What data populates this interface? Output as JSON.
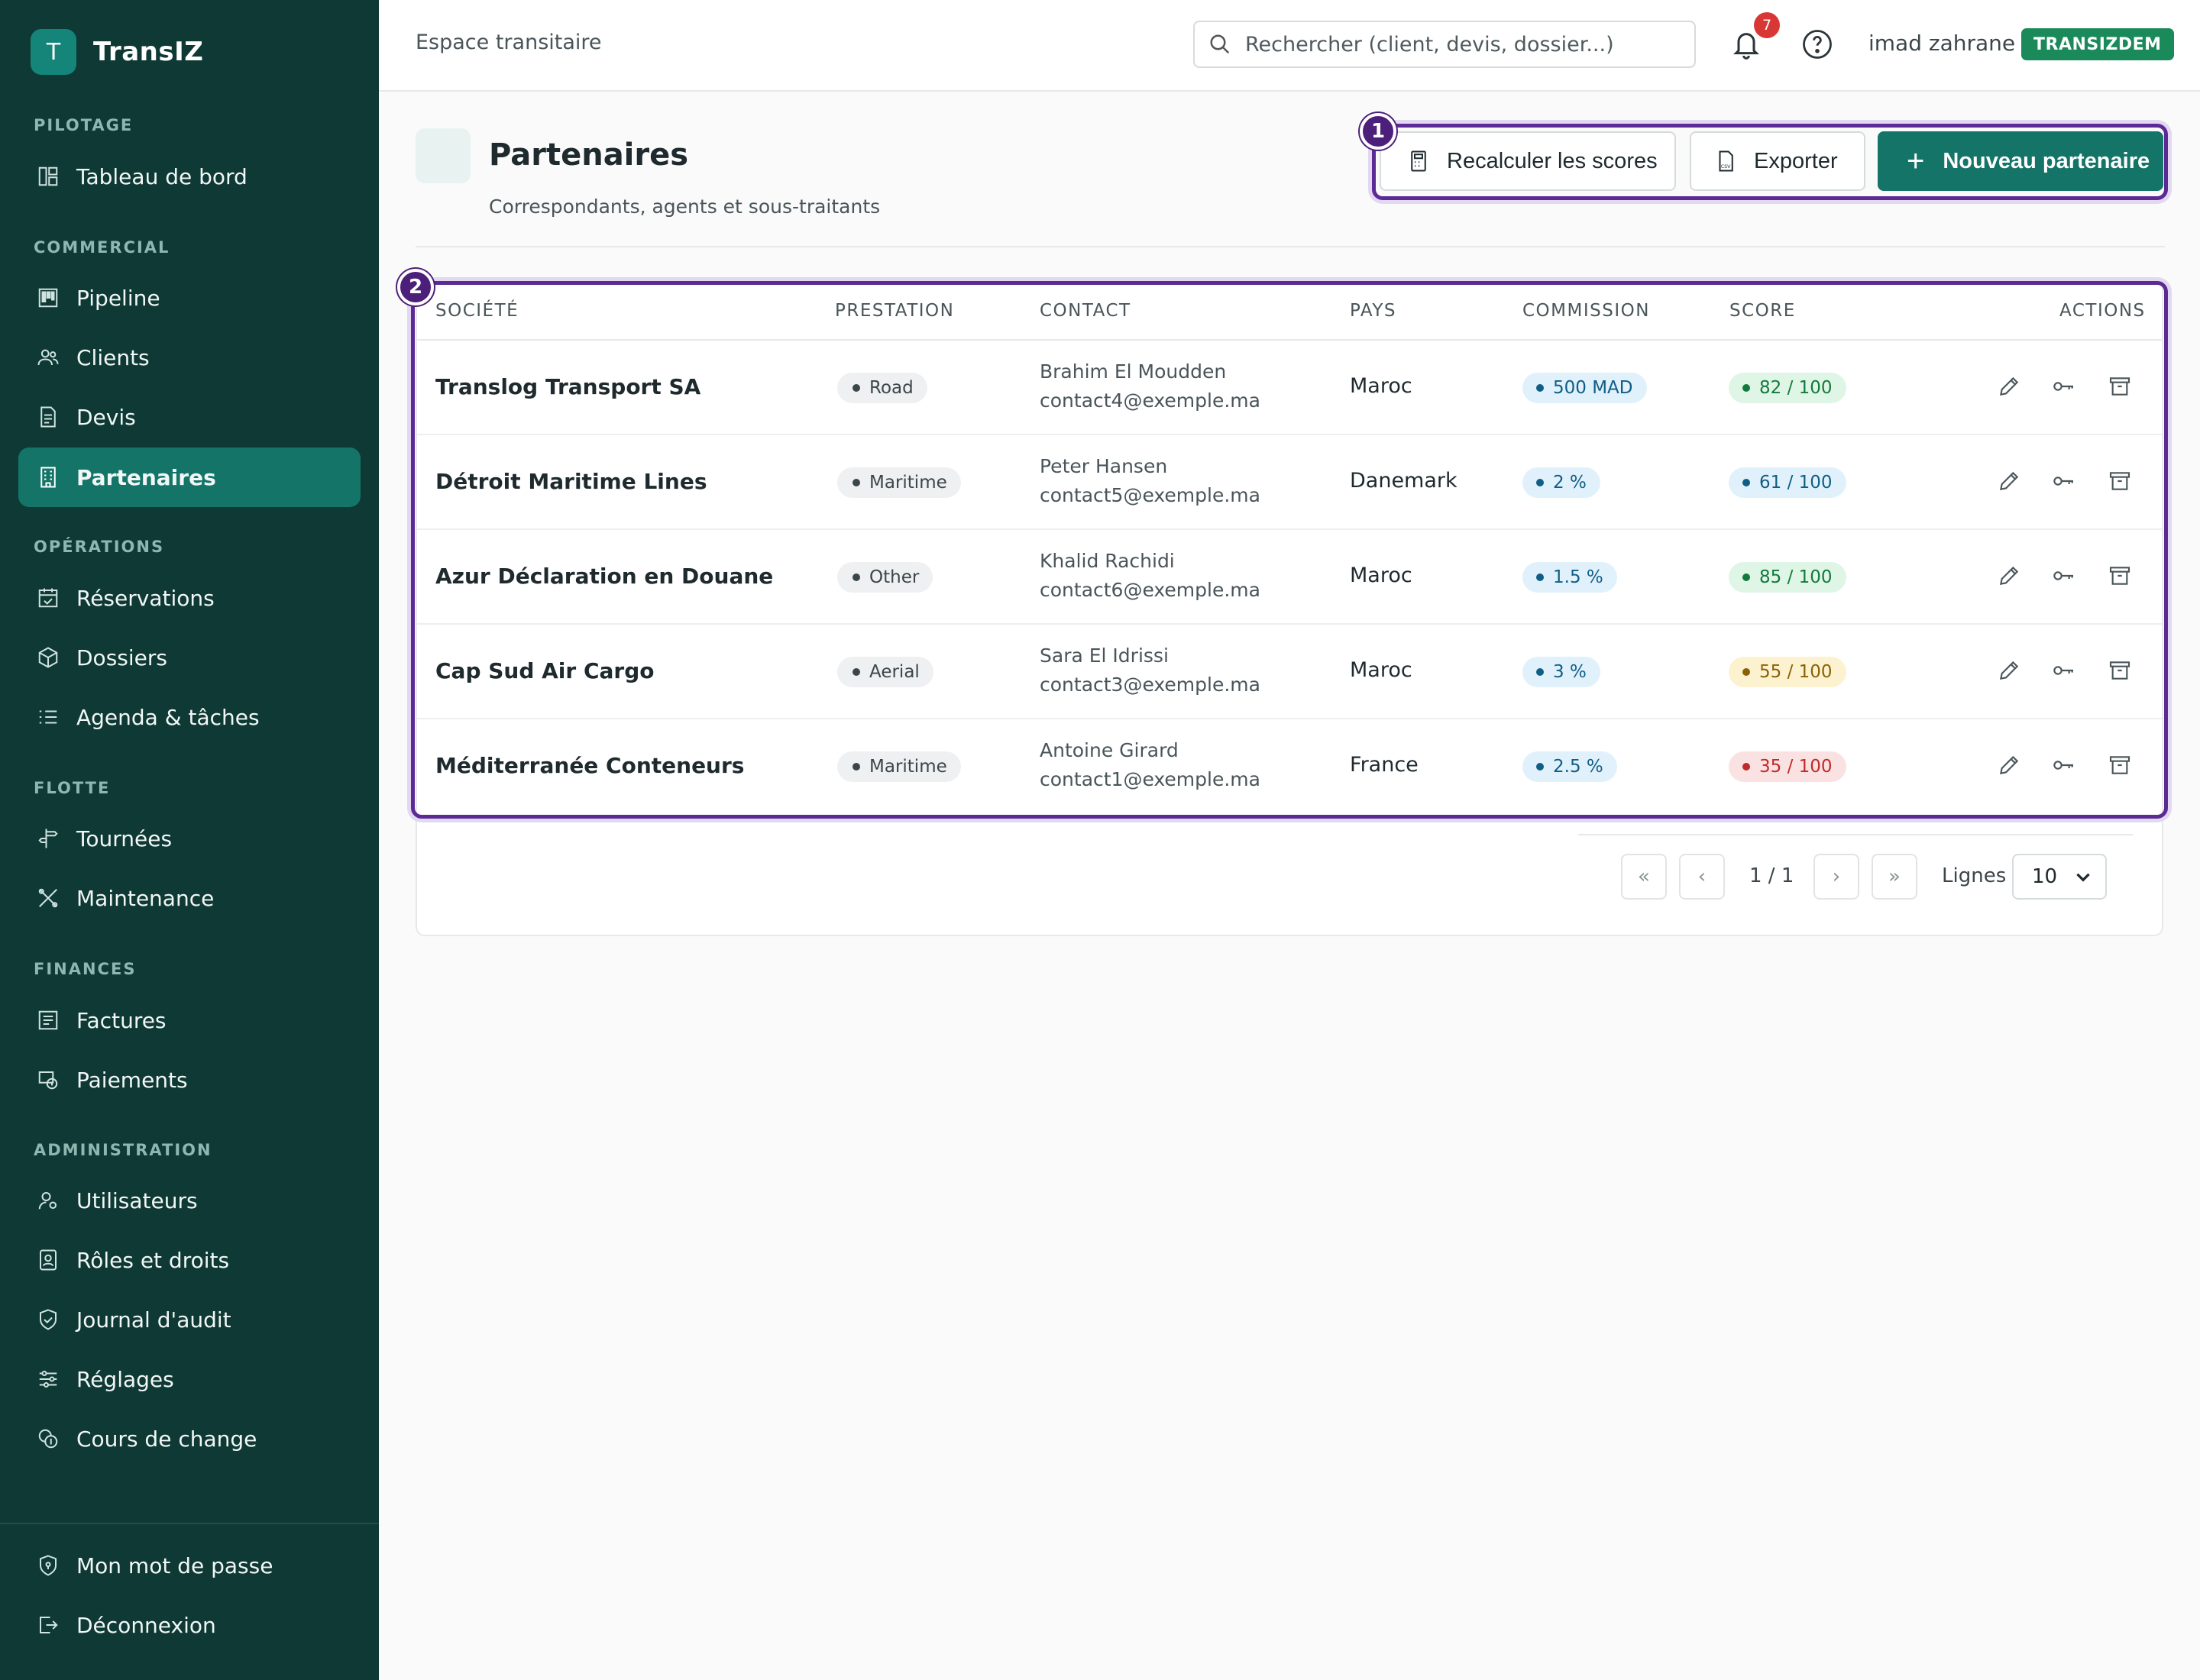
{
  "brand": {
    "logo_letter": "T",
    "name": "TransIZ",
    "color": "#137467"
  },
  "sidebar": {
    "sections": [
      {
        "title": "PILOTAGE",
        "items": [
          {
            "label": "Tableau de bord",
            "icon": "dashboard-icon"
          }
        ]
      },
      {
        "title": "COMMERCIAL",
        "items": [
          {
            "label": "Pipeline",
            "icon": "kanban-icon"
          },
          {
            "label": "Clients",
            "icon": "users-icon"
          },
          {
            "label": "Devis",
            "icon": "document-icon"
          },
          {
            "label": "Partenaires",
            "icon": "building-icon",
            "active": true
          }
        ]
      },
      {
        "title": "OPÉRATIONS",
        "items": [
          {
            "label": "Réservations",
            "icon": "calendar-check-icon"
          },
          {
            "label": "Dossiers",
            "icon": "box-icon"
          },
          {
            "label": "Agenda & tâches",
            "icon": "list-icon"
          }
        ]
      },
      {
        "title": "FLOTTE",
        "items": [
          {
            "label": "Tournées",
            "icon": "signpost-icon"
          },
          {
            "label": "Maintenance",
            "icon": "tools-icon"
          }
        ]
      },
      {
        "title": "FINANCES",
        "items": [
          {
            "label": "Factures",
            "icon": "invoice-icon"
          },
          {
            "label": "Paiements",
            "icon": "payment-icon"
          }
        ]
      },
      {
        "title": "ADMINISTRATION",
        "items": [
          {
            "label": "Utilisateurs",
            "icon": "user-gear-icon"
          },
          {
            "label": "Rôles et droits",
            "icon": "id-badge-icon"
          },
          {
            "label": "Journal d'audit",
            "icon": "shield-check-icon"
          },
          {
            "label": "Réglages",
            "icon": "sliders-icon"
          },
          {
            "label": "Cours de change",
            "icon": "coins-icon"
          }
        ]
      }
    ],
    "footer": [
      {
        "label": "Mon mot de passe",
        "icon": "shield-lock-icon"
      },
      {
        "label": "Déconnexion",
        "icon": "logout-icon"
      }
    ]
  },
  "topbar": {
    "breadcrumb": "Espace transitaire",
    "search_placeholder": "Rechercher (client, devis, dossier...)",
    "notifications": "7",
    "username": "imad zahrane",
    "tenant": "TRANSIZDEM"
  },
  "page": {
    "title": "Partenaires",
    "subtitle": "Correspondants, agents et sous-traitants",
    "actions": {
      "recalc": "Recalculer les scores",
      "export": "Exporter",
      "new": "Nouveau partenaire",
      "plus": "+"
    },
    "markers": {
      "actions": "1",
      "table": "2"
    }
  },
  "table": {
    "columns": [
      "SOCIÉTÉ",
      "PRESTATION",
      "CONTACT",
      "PAYS",
      "COMMISSION",
      "SCORE",
      "ACTIONS"
    ],
    "rows": [
      {
        "company": "Translog Transport SA",
        "service": "Road",
        "contact_name": "Brahim El Moudden",
        "contact_email": "contact4@exemple.ma",
        "country": "Maroc",
        "commission": "500 MAD",
        "score": "82 / 100",
        "score_level": "green"
      },
      {
        "company": "Détroit Maritime Lines",
        "service": "Maritime",
        "contact_name": "Peter Hansen",
        "contact_email": "contact5@exemple.ma",
        "country": "Danemark",
        "commission": "2 %",
        "score": "61 / 100",
        "score_level": "blue"
      },
      {
        "company": "Azur Déclaration en Douane",
        "service": "Other",
        "contact_name": "Khalid Rachidi",
        "contact_email": "contact6@exemple.ma",
        "country": "Maroc",
        "commission": "1.5 %",
        "score": "85 / 100",
        "score_level": "green"
      },
      {
        "company": "Cap Sud Air Cargo",
        "service": "Aerial",
        "contact_name": "Sara El Idrissi",
        "contact_email": "contact3@exemple.ma",
        "country": "Maroc",
        "commission": "3 %",
        "score": "55 / 100",
        "score_level": "yellow"
      },
      {
        "company": "Méditerranée Conteneurs",
        "service": "Maritime",
        "contact_name": "Antoine Girard",
        "contact_email": "contact1@exemple.ma",
        "country": "France",
        "commission": "2.5 %",
        "score": "35 / 100",
        "score_level": "red"
      }
    ]
  },
  "pagination": {
    "first": "«",
    "prev": "‹",
    "page": "1 / 1",
    "next": "›",
    "last": "»",
    "rows_label": "Lignes",
    "rows_value": "10"
  }
}
